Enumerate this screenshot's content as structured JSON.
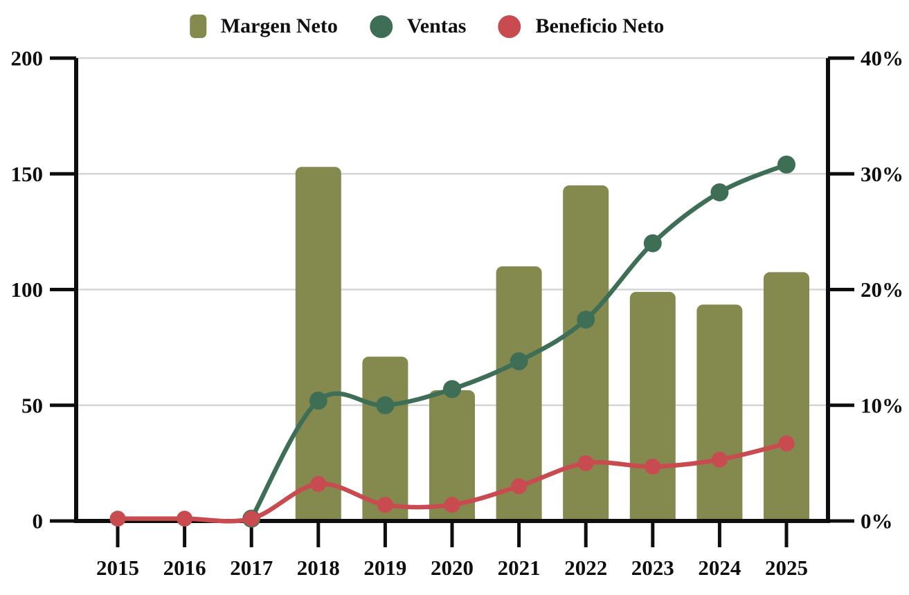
{
  "chart_data": {
    "type": "combo",
    "title": "",
    "categories": [
      "2015",
      "2016",
      "2017",
      "2018",
      "2019",
      "2020",
      "2021",
      "2022",
      "2023",
      "2024",
      "2025"
    ],
    "series": [
      {
        "name": "Margen Neto",
        "type": "bar",
        "axis": "right",
        "unit": "%",
        "color": "#84894E",
        "values": [
          null,
          null,
          null,
          30.6,
          14.2,
          11.3,
          22,
          29,
          19.8,
          18.7,
          21.5
        ]
      },
      {
        "name": "Ventas",
        "type": "line",
        "axis": "left",
        "color": "#3E6F56",
        "values": [
          null,
          null,
          1,
          52,
          50,
          57,
          69,
          87,
          120,
          142,
          154
        ]
      },
      {
        "name": "Beneficio Neto",
        "type": "line",
        "axis": "left",
        "color": "#C84B50",
        "values": [
          1,
          1,
          1,
          16,
          7,
          7,
          15,
          25,
          23.5,
          26.5,
          33.5
        ]
      }
    ],
    "axes": {
      "left": {
        "range": [
          0,
          200
        ],
        "tick_values": [
          0,
          50,
          100,
          150,
          200
        ],
        "tick_labels": [
          "0",
          "50",
          "100",
          "150",
          "200"
        ]
      },
      "right": {
        "range": [
          0,
          40
        ],
        "tick_values": [
          0,
          10,
          20,
          30,
          40
        ],
        "tick_labels": [
          "0%",
          "10%",
          "20%",
          "30%",
          "40%"
        ]
      }
    },
    "legend_position": "top",
    "grid": true,
    "grid_color": "#d5d5d5",
    "axis_color": "#0e0e0e",
    "background_color": "#ffffff"
  }
}
